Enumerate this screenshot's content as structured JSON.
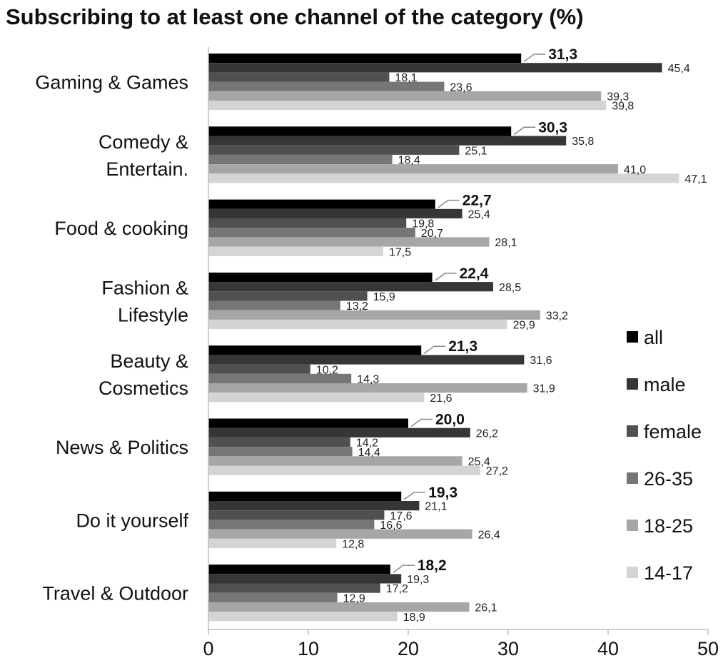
{
  "chart_data": {
    "type": "bar",
    "orientation": "horizontal",
    "title": "Subscribing to at least one channel of the category (%)",
    "xlabel": "",
    "ylabel": "",
    "xlim": [
      0,
      50
    ],
    "x_ticks": [
      0,
      10,
      20,
      30,
      40,
      50
    ],
    "grid": false,
    "legend_position": "right",
    "categories": [
      "Gaming & Games",
      "Comedy & Entertain.",
      "Food & cooking",
      "Fashion & Lifestyle",
      "Beauty & Cosmetics",
      "News & Politics",
      "Do it yourself",
      "Travel & Outdoor"
    ],
    "category_lines": [
      [
        "Gaming & Games"
      ],
      [
        "Comedy &",
        "Entertain."
      ],
      [
        "Food & cooking"
      ],
      [
        "Fashion &",
        "Lifestyle"
      ],
      [
        "Beauty &",
        "Cosmetics"
      ],
      [
        "News & Politics"
      ],
      [
        "Do it yourself"
      ],
      [
        "Travel & Outdoor"
      ]
    ],
    "series": [
      {
        "name": "all",
        "color": "#000000",
        "values": [
          31.3,
          30.3,
          22.7,
          22.4,
          21.3,
          20.0,
          19.3,
          18.2
        ],
        "labels": [
          "31,3",
          "30,3",
          "22,7",
          "22,4",
          "21,3",
          "20,0",
          "19,3",
          "18,2"
        ]
      },
      {
        "name": "male",
        "color": "#363636",
        "values": [
          45.4,
          35.8,
          25.4,
          28.5,
          31.6,
          26.2,
          21.1,
          19.3
        ],
        "labels": [
          "45,4",
          "35,8",
          "25,4",
          "28,5",
          "31,6",
          "26,2",
          "21,1",
          "19,3"
        ]
      },
      {
        "name": "female",
        "color": "#505050",
        "values": [
          18.1,
          25.1,
          19.8,
          15.9,
          10.2,
          14.2,
          17.6,
          17.2
        ],
        "labels": [
          "18,1",
          "25,1",
          "19,8",
          "15,9",
          "10,2",
          "14,2",
          "17,6",
          "17,2"
        ]
      },
      {
        "name": "26-35",
        "color": "#767676",
        "values": [
          23.6,
          18.4,
          20.7,
          13.2,
          14.3,
          14.4,
          16.6,
          12.9
        ],
        "labels": [
          "23,6",
          "18,4",
          "20,7",
          "13,2",
          "14,3",
          "14,4",
          "16,6",
          "12,9"
        ]
      },
      {
        "name": "18-25",
        "color": "#a6a6a6",
        "values": [
          39.3,
          41.0,
          28.1,
          33.2,
          31.9,
          25.4,
          26.4,
          26.1
        ],
        "labels": [
          "39,3",
          "41,0",
          "28,1",
          "33,2",
          "31,9",
          "25,4",
          "26,4",
          "26,1"
        ]
      },
      {
        "name": "14-17",
        "color": "#d4d4d4",
        "values": [
          39.8,
          47.1,
          17.5,
          29.9,
          21.6,
          27.2,
          12.8,
          18.9
        ],
        "labels": [
          "39,8",
          "47,1",
          "17,5",
          "29,9",
          "21,6",
          "27,2",
          "12,8",
          "18,9"
        ]
      }
    ]
  }
}
